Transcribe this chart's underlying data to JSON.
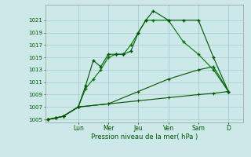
{
  "xlabel": "Pression niveau de la mer( hPa )",
  "bg_color": "#cce8e8",
  "grid_color": "#aacccc",
  "line_color1": "#005500",
  "line_color2": "#007700",
  "ylim": [
    1004.5,
    1023.5
  ],
  "yticks": [
    1005,
    1007,
    1009,
    1011,
    1013,
    1015,
    1017,
    1019,
    1021
  ],
  "x_day_labels": [
    "Lun",
    "Mer",
    "Jeu",
    "Ven",
    "Sam",
    "D"
  ],
  "x_day_positions": [
    2,
    4,
    6,
    8,
    10,
    12
  ],
  "xlim": [
    -0.2,
    13.0
  ],
  "line1_x": [
    0,
    0.5,
    1,
    2,
    2.5,
    3,
    3.5,
    4,
    4.5,
    5,
    5.5,
    6,
    6.5,
    7,
    8,
    9,
    10,
    11,
    12
  ],
  "line1_y": [
    1005,
    1005.2,
    1005.5,
    1007,
    1010.5,
    1014.5,
    1013.5,
    1015.5,
    1015.5,
    1015.5,
    1016,
    1019,
    1021,
    1022.5,
    1021,
    1021,
    1021,
    1015,
    1009.5
  ],
  "line2_x": [
    0,
    0.5,
    1,
    2,
    2.5,
    3,
    3.5,
    4,
    4.5,
    5,
    5.5,
    6,
    6.5,
    7,
    8,
    9,
    10,
    11,
    12
  ],
  "line2_y": [
    1005,
    1005.2,
    1005.5,
    1007,
    1010,
    1011.5,
    1013.0,
    1015,
    1015.5,
    1015.5,
    1017,
    1019,
    1021,
    1021,
    1021,
    1017.5,
    1015.5,
    1013,
    1009.5
  ],
  "line3_x": [
    0,
    1,
    2,
    4,
    6,
    8,
    10,
    11,
    12
  ],
  "line3_y": [
    1005,
    1005.5,
    1007,
    1007.5,
    1008.0,
    1008.5,
    1009.0,
    1009.2,
    1009.5
  ],
  "line4_x": [
    0,
    1,
    2,
    4,
    6,
    8,
    10,
    11,
    12
  ],
  "line4_y": [
    1005,
    1005.5,
    1007,
    1007.5,
    1009.5,
    1011.5,
    1013.0,
    1013.5,
    1009.5
  ]
}
